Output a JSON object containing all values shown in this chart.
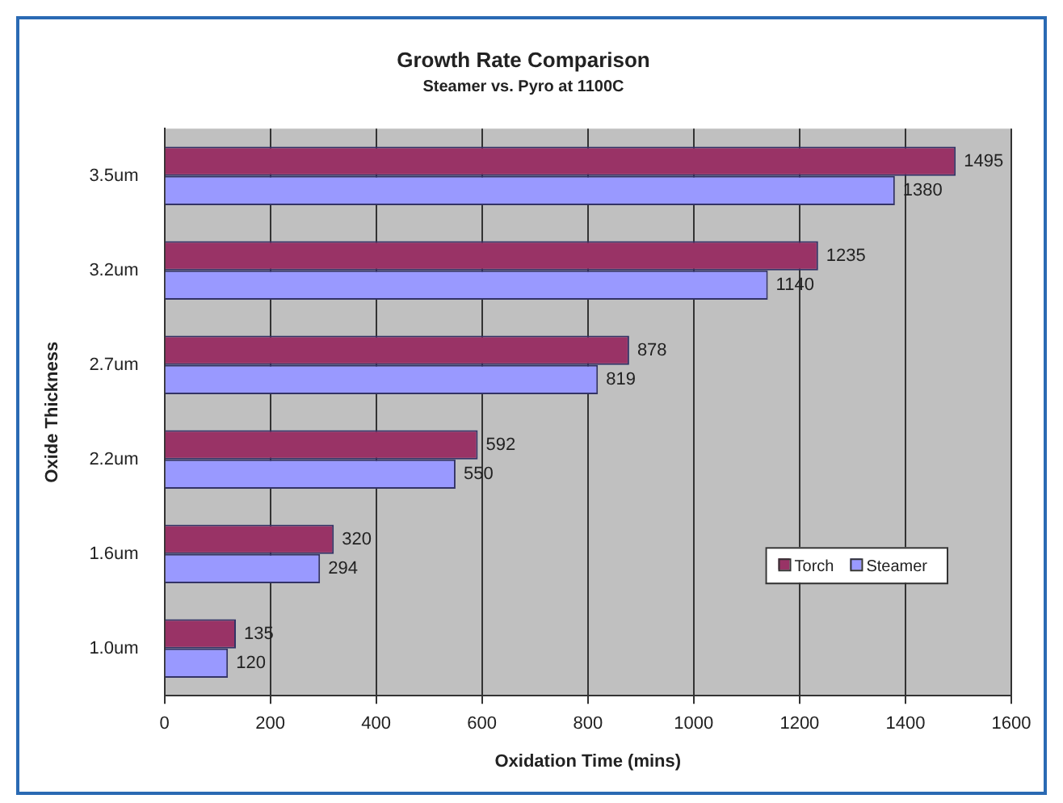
{
  "chart_data": {
    "type": "bar",
    "orientation": "horizontal",
    "title": "Growth Rate Comparison",
    "subtitle": "Steamer vs. Pyro at 1100C",
    "xlabel": "Oxidation Time (mins)",
    "ylabel": "Oxide Thickness",
    "categories": [
      "3.5um",
      "3.2um",
      "2.7um",
      "2.2um",
      "1.6um",
      "1.0um"
    ],
    "series": [
      {
        "name": "Torch",
        "color": "#993366",
        "values": [
          1495,
          1235,
          878,
          592,
          320,
          135
        ]
      },
      {
        "name": "Steamer",
        "color": "#9999ff",
        "values": [
          1380,
          1140,
          819,
          550,
          294,
          120
        ]
      }
    ],
    "xlim": [
      0,
      1600
    ],
    "xticks": [
      0,
      200,
      400,
      600,
      800,
      1000,
      1200,
      1400,
      1600
    ],
    "grid": "x",
    "legend": "bottom right",
    "data_labels": true
  }
}
